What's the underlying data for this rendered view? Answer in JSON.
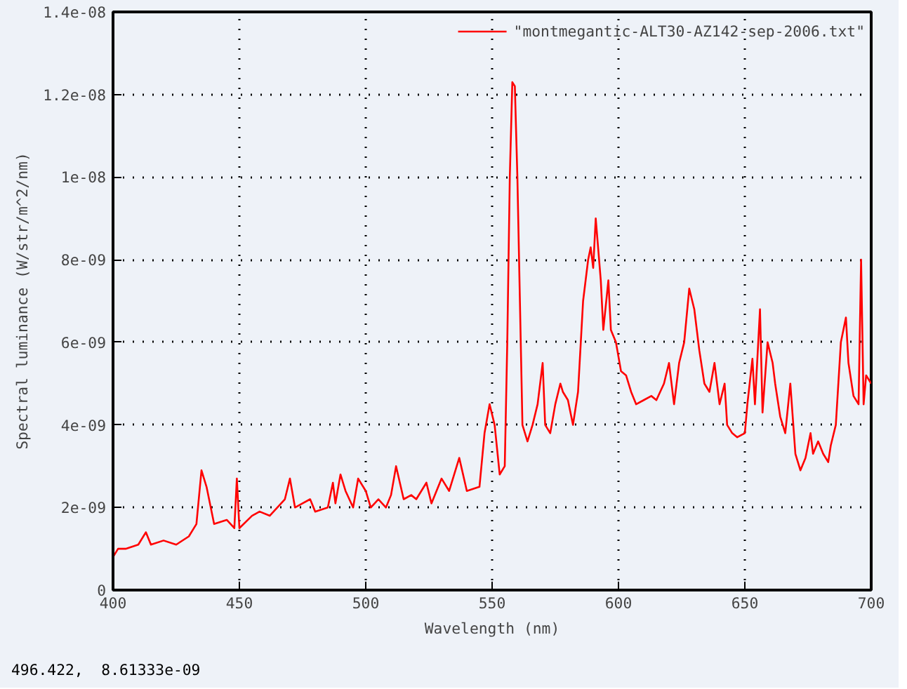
{
  "chart_data": {
    "type": "line",
    "xlabel": "Wavelength (nm)",
    "ylabel": "Spectral luminance (W/str/m^2/nm)",
    "xlim": [
      400,
      700
    ],
    "xticks": [
      400,
      450,
      500,
      550,
      600,
      650,
      700
    ],
    "ylim": [
      0,
      1.4e-08
    ],
    "yticks": [
      0,
      {
        "value": 2e-09,
        "label": "2e-09"
      },
      {
        "value": 4e-09,
        "label": "4e-09"
      },
      {
        "value": 6e-09,
        "label": "6e-09"
      },
      {
        "value": 8e-09,
        "label": "8e-09"
      },
      {
        "value": 1e-08,
        "label": "1e-08"
      },
      {
        "value": 1.2e-08,
        "label": "1.2e-08"
      },
      {
        "value": 1.4e-08,
        "label": "1.4e-08"
      }
    ],
    "grid": true,
    "legend": "top right",
    "marker": "none",
    "line_style": "solid",
    "annotations": [
      "496.422,  8.61333e-09"
    ],
    "x": [
      400,
      402,
      405,
      410,
      413,
      415,
      420,
      425,
      430,
      433,
      435,
      437,
      440,
      445,
      448,
      449,
      450,
      455,
      458,
      462,
      465,
      468,
      470,
      472,
      475,
      478,
      480,
      485,
      487,
      488,
      490,
      492,
      495,
      497,
      500,
      502,
      505,
      508,
      510,
      512,
      515,
      518,
      520,
      524,
      526,
      530,
      533,
      537,
      540,
      545,
      547,
      549,
      551,
      553,
      555,
      556,
      557,
      558,
      559,
      560,
      561,
      562,
      564,
      566,
      568,
      570,
      571,
      573,
      575,
      577,
      578,
      580,
      582,
      584,
      586,
      588,
      589,
      590,
      591,
      593,
      594,
      596,
      597,
      599,
      601,
      603,
      605,
      607,
      610,
      613,
      615,
      618,
      620,
      622,
      624,
      626,
      628,
      630,
      632,
      634,
      636,
      638,
      640,
      642,
      643,
      645,
      647,
      650,
      651,
      653,
      654,
      656,
      657,
      659,
      661,
      662,
      664,
      666,
      668,
      670,
      672,
      674,
      676,
      677,
      679,
      681,
      683,
      684,
      686,
      688,
      690,
      691,
      693,
      695,
      696,
      697,
      698,
      700
    ],
    "series": [
      {
        "name": "\"montmegantic-ALT30-AZ142-sep-2006.txt\"",
        "color": "#ff0000",
        "values": [
          8e-10,
          1e-09,
          1e-09,
          1.1e-09,
          1.4e-09,
          1.1e-09,
          1.2e-09,
          1.1e-09,
          1.3e-09,
          1.6e-09,
          2.9e-09,
          2.5e-09,
          1.6e-09,
          1.7e-09,
          1.5e-09,
          2.7e-09,
          1.5e-09,
          1.8e-09,
          1.9e-09,
          1.8e-09,
          2e-09,
          2.2e-09,
          2.7e-09,
          2e-09,
          2.1e-09,
          2.2e-09,
          1.9e-09,
          2e-09,
          2.6e-09,
          2.1e-09,
          2.8e-09,
          2.4e-09,
          2e-09,
          2.7e-09,
          2.4e-09,
          2e-09,
          2.2e-09,
          2e-09,
          2.3e-09,
          3e-09,
          2.2e-09,
          2.3e-09,
          2.2e-09,
          2.6e-09,
          2.1e-09,
          2.7e-09,
          2.4e-09,
          3.2e-09,
          2.4e-09,
          2.5e-09,
          3.8e-09,
          4.5e-09,
          4e-09,
          2.8e-09,
          3e-09,
          6e-09,
          1e-08,
          1.23e-08,
          1.22e-08,
          1e-08,
          7e-09,
          4e-09,
          3.6e-09,
          4e-09,
          4.5e-09,
          5.5e-09,
          4e-09,
          3.8e-09,
          4.5e-09,
          5e-09,
          4.8e-09,
          4.6e-09,
          4e-09,
          4.8e-09,
          7e-09,
          8e-09,
          8.3e-09,
          7.8e-09,
          9e-09,
          7.5e-09,
          6.3e-09,
          7.5e-09,
          6.3e-09,
          6e-09,
          5.3e-09,
          5.2e-09,
          4.8e-09,
          4.5e-09,
          4.6e-09,
          4.7e-09,
          4.6e-09,
          5e-09,
          5.5e-09,
          4.5e-09,
          5.5e-09,
          6e-09,
          7.3e-09,
          6.8e-09,
          5.8e-09,
          5e-09,
          4.8e-09,
          5.5e-09,
          4.5e-09,
          5e-09,
          4e-09,
          3.8e-09,
          3.7e-09,
          3.8e-09,
          4.5e-09,
          5.6e-09,
          4.5e-09,
          6.8e-09,
          4.3e-09,
          6e-09,
          5.5e-09,
          5e-09,
          4.2e-09,
          3.8e-09,
          5e-09,
          3.3e-09,
          2.9e-09,
          3.2e-09,
          3.8e-09,
          3.3e-09,
          3.6e-09,
          3.3e-09,
          3.1e-09,
          3.5e-09,
          4e-09,
          6e-09,
          6.6e-09,
          5.5e-09,
          4.7e-09,
          4.5e-09,
          8e-09,
          4.5e-09,
          5.2e-09,
          5e-09
        ]
      }
    ]
  }
}
